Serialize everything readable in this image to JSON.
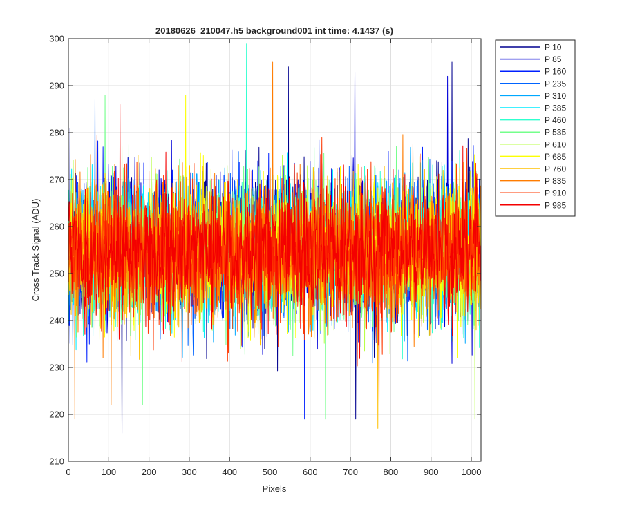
{
  "chart_data": {
    "type": "line",
    "title": "20180626_210047.h5  background001   int time: 4.1437 (s)",
    "xlabel": "Pixels",
    "ylabel": "Cross Track Signal (ADU)",
    "xlim": [
      0,
      1024
    ],
    "ylim": [
      210,
      300
    ],
    "x_ticks": [
      0,
      100,
      200,
      300,
      400,
      500,
      600,
      700,
      800,
      900,
      1000
    ],
    "y_ticks": [
      210,
      220,
      230,
      240,
      250,
      260,
      270,
      280,
      290,
      300
    ],
    "grid": true,
    "legend_position": "outside-top-right",
    "n_points": 1024,
    "noise_center": 255,
    "noise_spread_typical": 12,
    "series": [
      {
        "name": "P 10",
        "color": "#00008f",
        "mean": 256,
        "notable_points": [
          [
            3,
            281
          ],
          [
            132,
            216
          ],
          [
            545,
            294
          ],
          [
            712,
            219
          ],
          [
            951,
            295
          ]
        ]
      },
      {
        "name": "P 85",
        "color": "#0000d9",
        "mean": 256,
        "notable_points": [
          [
            710,
            293
          ],
          [
            940,
            292
          ]
        ]
      },
      {
        "name": "P 160",
        "color": "#0020ff",
        "mean": 256,
        "notable_points": [
          [
            585,
            219
          ]
        ]
      },
      {
        "name": "P 235",
        "color": "#0064ff",
        "mean": 255,
        "notable_points": [
          [
            65,
            287
          ]
        ]
      },
      {
        "name": "P 310",
        "color": "#00a8ff",
        "mean": 255,
        "notable_points": []
      },
      {
        "name": "P 385",
        "color": "#00ecff",
        "mean": 255,
        "notable_points": []
      },
      {
        "name": "P 460",
        "color": "#30ffcf",
        "mean": 255,
        "notable_points": [
          [
            441,
            299
          ]
        ]
      },
      {
        "name": "P 535",
        "color": "#74ff8b",
        "mean": 255,
        "notable_points": [
          [
            90,
            288
          ],
          [
            183,
            222
          ],
          [
            637,
            219
          ]
        ]
      },
      {
        "name": "P 610",
        "color": "#b8ff47",
        "mean": 255,
        "notable_points": [
          [
            1008,
            219
          ]
        ]
      },
      {
        "name": "P 685",
        "color": "#fcff03",
        "mean": 255,
        "notable_points": [
          [
            290,
            288
          ]
        ]
      },
      {
        "name": "P 760",
        "color": "#ffc000",
        "mean": 255,
        "notable_points": [
          [
            767,
            217
          ]
        ]
      },
      {
        "name": "P 835",
        "color": "#ff7c00",
        "mean": 255,
        "notable_points": [
          [
            506,
            295
          ],
          [
            15,
            219
          ],
          [
            105,
            222
          ]
        ]
      },
      {
        "name": "P 910",
        "color": "#ff3800",
        "mean": 255,
        "notable_points": []
      },
      {
        "name": "P 985",
        "color": "#f40000",
        "mean": 255,
        "notable_points": [
          [
            127,
            286
          ],
          [
            770,
            222
          ]
        ]
      }
    ]
  }
}
